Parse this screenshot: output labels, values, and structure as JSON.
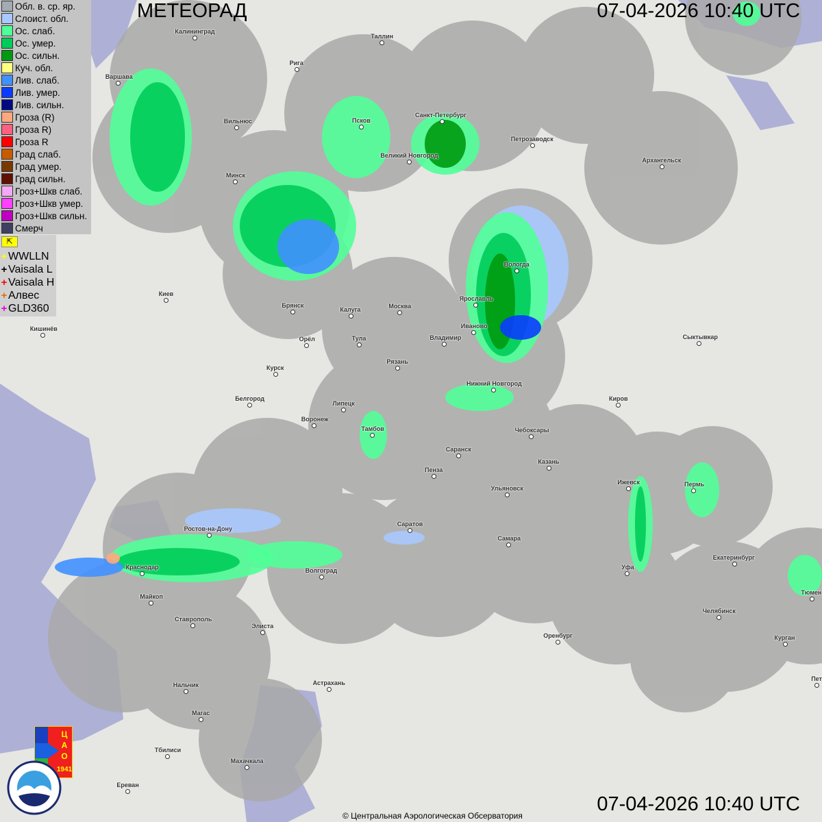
{
  "header": {
    "title": "МЕТЕОРАД",
    "timestamp_top": "07-04-2026  10:40 UTC",
    "timestamp_bottom": "07-04-2026  10:40 UTC"
  },
  "legend": {
    "items": [
      {
        "label": "Обл. в. ср. яр.",
        "color": "#a3abb3"
      },
      {
        "label": "Слоист. обл.",
        "color": "#a8c8ff"
      },
      {
        "label": "Ос. слаб.",
        "color": "#50ff98"
      },
      {
        "label": "Ос. умер.",
        "color": "#00cc5a"
      },
      {
        "label": "Ос. сильн.",
        "color": "#009a10"
      },
      {
        "label": "Куч. обл.",
        "color": "#ffff80"
      },
      {
        "label": "Лив. слаб.",
        "color": "#4090ff"
      },
      {
        "label": "Лив. умер.",
        "color": "#0a3cff"
      },
      {
        "label": "Лив. сильн.",
        "color": "#000a80"
      },
      {
        "label": "Гроза (R)",
        "color": "#ffa880"
      },
      {
        "label": "Гроза R)",
        "color": "#ff6080"
      },
      {
        "label": "Гроза R",
        "color": "#ff0000"
      },
      {
        "label": "Град слаб.",
        "color": "#c85a00"
      },
      {
        "label": "Град умер.",
        "color": "#7a3800"
      },
      {
        "label": "Град сильн.",
        "color": "#601000"
      },
      {
        "label": "Гроз+Шкв слаб.",
        "color": "#f4a8f4"
      },
      {
        "label": "Гроз+Шкв умер.",
        "color": "#ff40ff"
      },
      {
        "label": "Гроз+Шкв сильн.",
        "color": "#c000c0"
      },
      {
        "label": "Смерч",
        "color": "#404060"
      }
    ]
  },
  "lightning": {
    "toggle_icon": "pointer-arrow-icon",
    "items": [
      {
        "label": "WWLLN",
        "color": "#ffff00"
      },
      {
        "label": "Vaisala L",
        "color": "#000000"
      },
      {
        "label": "Vaisala H",
        "color": "#ff0000"
      },
      {
        "label": "Алвес",
        "color": "#e07000"
      },
      {
        "label": "GLD360",
        "color": "#e000e0"
      }
    ]
  },
  "cities": [
    "Калининград",
    "Таллин",
    "Рига",
    "Варшава",
    "Вильнюс",
    "Псков",
    "Санкт-Петербург",
    "Петрозаводск",
    "Архангельск",
    "Великий Новгород",
    "Минск",
    "Вологда",
    "Ярославль",
    "Киев",
    "Москва",
    "Калуга",
    "Брянск",
    "Иваново",
    "Кишинёв",
    "Тула",
    "Владимир",
    "Сыктывкар",
    "Орёл",
    "Рязань",
    "Курск",
    "Нижний Новгород",
    "Белгород",
    "Киров",
    "Липецк",
    "Воронеж",
    "Тамбов",
    "Чебоксары",
    "Саранск",
    "Казань",
    "Пенза",
    "Ульяновск",
    "Ижевск",
    "Пермь",
    "Саратов",
    "Ростов-на-Дону",
    "Самара",
    "Екатеринбург",
    "Краснодар",
    "Уфа",
    "Волгоград",
    "Майкоп",
    "Тюмень",
    "Челябинск",
    "Ставрополь",
    "Элиста",
    "Оренбург",
    "Курган",
    "Нальчик",
    "Астрахань",
    "Магас",
    "Тбилиси",
    "Махачкала",
    "Ереван",
    "Пет"
  ],
  "logos": {
    "cao": "ЦАО 1941",
    "roshydromet": "РОСГИДРОМЕТ ROSHYDROMET"
  },
  "footer": {
    "copyright": "© Центральная Аэрологическая Обсерватория"
  }
}
